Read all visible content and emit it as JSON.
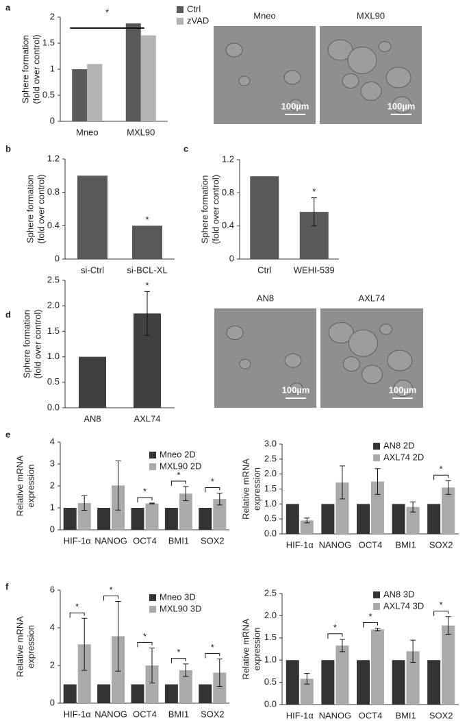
{
  "chart_data": [
    {
      "type": "bar",
      "panel": "a",
      "ylabel": [
        "Sphere formation",
        "(fold over control)"
      ],
      "categories": [
        "Mneo",
        "MXL90"
      ],
      "series": [
        {
          "name": "Ctrl",
          "color": "#5a5a5a",
          "values": [
            1,
            1.88
          ]
        },
        {
          "name": "zVAD",
          "color": "#b3b3b3",
          "values": [
            1.1,
            1.65
          ]
        }
      ],
      "ylim": [
        0,
        2
      ],
      "yticks": [
        0,
        0.5,
        1,
        1.5,
        2
      ],
      "significance_label": "*",
      "images": [
        {
          "label": "Mneo",
          "scale": "100µm"
        },
        {
          "label": "MXL90",
          "scale": "100µm"
        }
      ]
    },
    {
      "type": "bar",
      "panel": "b",
      "ylabel": [
        "Sphere formation",
        "(fold over control)"
      ],
      "categories": [
        "si-Ctrl",
        "si-BCL-XL"
      ],
      "values": [
        1,
        0.4
      ],
      "color": "#595959",
      "ylim": [
        0,
        1.2
      ],
      "yticks": [
        0,
        0.4,
        0.8,
        1.2
      ],
      "significance": [
        null,
        "*"
      ]
    },
    {
      "type": "bar",
      "panel": "c",
      "ylabel": [
        "Sphere formation",
        "(fold over control)"
      ],
      "categories": [
        "Ctrl",
        "WEHI-539"
      ],
      "values": [
        1,
        0.57
      ],
      "errors": [
        null,
        0.17
      ],
      "color": "#595959",
      "ylim": [
        0,
        1.2
      ],
      "yticks": [
        0,
        0.4,
        0.8,
        1.2
      ],
      "significance": [
        null,
        "*"
      ]
    },
    {
      "type": "bar",
      "panel": "d",
      "ylabel": [
        "Sphere formation",
        "(fold over control)"
      ],
      "categories": [
        "AN8",
        "AXL74"
      ],
      "values": [
        1,
        1.85
      ],
      "errors": [
        null,
        0.43
      ],
      "color": "#404040",
      "ylim": [
        0,
        2.5
      ],
      "yticks": [
        {
          "value": 0,
          "label": "0.0"
        },
        0.5,
        {
          "value": 1,
          "label": "1.0"
        },
        1.5,
        {
          "value": 2,
          "label": "2.0"
        },
        2.5
      ],
      "significance": [
        null,
        "*"
      ],
      "images": [
        {
          "label": "AN8",
          "scale": "100µm"
        },
        {
          "label": "AXL74",
          "scale": "100µm"
        }
      ]
    },
    {
      "type": "bar",
      "panel": "e",
      "ylabel": [
        "Relative mRNA",
        "expression"
      ],
      "categories": [
        "HIF-1α",
        "NANOG",
        "OCT4",
        "BMI1",
        "SOX2"
      ],
      "series": [
        {
          "name": "Mneo 2D",
          "color": "#333333",
          "values": [
            1,
            1,
            1,
            1,
            1
          ]
        },
        {
          "name": "MXL90 2D",
          "color": "#aaaaaa",
          "values": [
            1.22,
            2.02,
            1.2,
            1.65,
            1.4
          ],
          "errors": [
            0.33,
            1.12,
            0.02,
            0.32,
            0.27
          ]
        }
      ],
      "ylim": [
        0,
        4
      ],
      "yticks": [
        0,
        1,
        2,
        3,
        4
      ],
      "significance": [
        null,
        null,
        "*",
        "*",
        "*"
      ]
    },
    {
      "type": "bar",
      "ylabel": [
        "Relative mRNA",
        "expression"
      ],
      "categories": [
        "HIF-1α",
        "NANOG",
        "OCT4",
        "BMI1",
        "SOX2"
      ],
      "series": [
        {
          "name": "AN8 2D",
          "color": "#333333",
          "values": [
            1,
            1,
            1,
            1,
            1
          ]
        },
        {
          "name": "AXL74 2D",
          "color": "#aaaaaa",
          "values": [
            0.45,
            1.72,
            1.75,
            0.9,
            1.55
          ],
          "errors": [
            0.08,
            0.55,
            0.43,
            0.17,
            0.23
          ]
        }
      ],
      "ylim": [
        0,
        3
      ],
      "yticks": [
        {
          "value": 0,
          "label": "0.0"
        },
        0.5,
        {
          "value": 1,
          "label": "1.0"
        },
        1.5,
        {
          "value": 2,
          "label": "2.0"
        },
        2.5,
        {
          "value": 3,
          "label": "3.0"
        }
      ],
      "significance": [
        null,
        null,
        null,
        null,
        "*"
      ]
    },
    {
      "type": "bar",
      "panel": "f",
      "ylabel": [
        "Relative mRNA",
        "expression"
      ],
      "categories": [
        "HIF-1α",
        "NANOG",
        "OCT4",
        "BMI1",
        "SOX2"
      ],
      "series": [
        {
          "name": "Mneo 3D",
          "color": "#333333",
          "values": [
            1,
            1,
            1,
            1,
            1
          ]
        },
        {
          "name": "MXL90 3D",
          "color": "#aaaaaa",
          "values": [
            3.12,
            3.55,
            2.0,
            1.75,
            1.62
          ],
          "errors": [
            1.38,
            1.85,
            0.93,
            0.33,
            0.73
          ]
        }
      ],
      "ylim": [
        0,
        6
      ],
      "yticks": [
        0,
        2,
        4,
        6
      ],
      "significance": [
        "*",
        "*",
        "*",
        "*",
        "*"
      ]
    },
    {
      "type": "bar",
      "ylabel": [
        "Relative mRNA",
        "expression"
      ],
      "categories": [
        "HIF-1α",
        "NANOG",
        "OCT4",
        "BMI1",
        "SOX2"
      ],
      "series": [
        {
          "name": "AN8 3D",
          "color": "#333333",
          "values": [
            1,
            1,
            1,
            1,
            1
          ]
        },
        {
          "name": "AXL74 3D",
          "color": "#aaaaaa",
          "values": [
            0.58,
            1.33,
            1.69,
            1.2,
            1.78
          ],
          "errors": [
            0.12,
            0.14,
            0.03,
            0.25,
            0.2
          ]
        }
      ],
      "ylim": [
        0,
        2.5
      ],
      "yticks": [
        {
          "value": 0,
          "label": "0.0"
        },
        0.5,
        {
          "value": 1,
          "label": "1.0"
        },
        1.5,
        {
          "value": 2,
          "label": "2.0"
        },
        2.5
      ],
      "significance": [
        null,
        "*",
        "*",
        null,
        "*"
      ]
    }
  ]
}
